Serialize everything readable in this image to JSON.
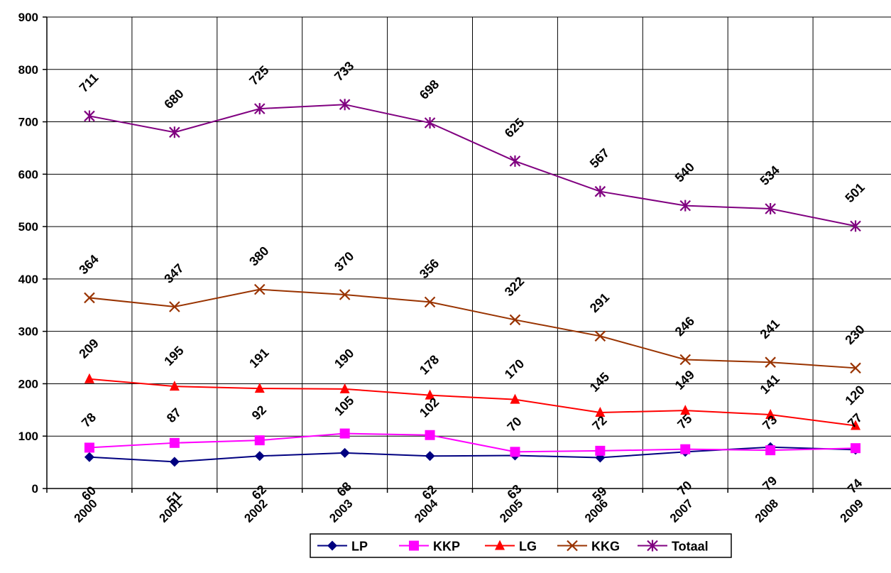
{
  "chart_data": {
    "type": "line",
    "x": [
      "2000",
      "2001",
      "2002",
      "2003",
      "2004",
      "2005",
      "2006",
      "2007",
      "2008",
      "2009"
    ],
    "ylim": [
      0,
      900
    ],
    "yticks": [
      0,
      100,
      200,
      300,
      400,
      500,
      600,
      700,
      800,
      900
    ],
    "grid": true,
    "legend_position": "bottom",
    "series": [
      {
        "name": "LP",
        "color": "#000080",
        "marker": "diamond",
        "values": [
          60,
          51,
          62,
          68,
          62,
          63,
          59,
          70,
          79,
          74
        ],
        "labels": [
          "60",
          "51",
          "62",
          "68",
          "62",
          "63",
          "59",
          "70",
          "79",
          "74"
        ]
      },
      {
        "name": "KKP",
        "color": "#FF00FF",
        "marker": "square",
        "values": [
          78,
          87,
          92,
          105,
          102,
          70,
          72,
          75,
          73,
          77
        ],
        "labels": [
          "78",
          "87",
          "92",
          "105",
          "102",
          "70",
          "72",
          "75",
          "73",
          "77"
        ]
      },
      {
        "name": "LG",
        "color": "#FF0000",
        "marker": "triangle",
        "values": [
          209,
          195,
          191,
          190,
          178,
          170,
          145,
          149,
          141,
          120
        ],
        "labels": [
          "209",
          "195",
          "191",
          "190",
          "178",
          "170",
          "145",
          "149",
          "141",
          "120"
        ]
      },
      {
        "name": "KKG",
        "color": "#993300",
        "marker": "x",
        "values": [
          364,
          347,
          380,
          370,
          356,
          322,
          291,
          246,
          241,
          230
        ],
        "labels": [
          "364",
          "347",
          "380",
          "370",
          "356",
          "322",
          "291",
          "246",
          "241",
          "230"
        ]
      },
      {
        "name": "Totaal",
        "color": "#800080",
        "marker": "star",
        "values": [
          711,
          680,
          725,
          733,
          698,
          625,
          567,
          540,
          534,
          501
        ],
        "labels": [
          "711",
          "680",
          "725",
          "733",
          "698",
          "625",
          "567",
          "540",
          "534",
          "501"
        ]
      }
    ]
  }
}
